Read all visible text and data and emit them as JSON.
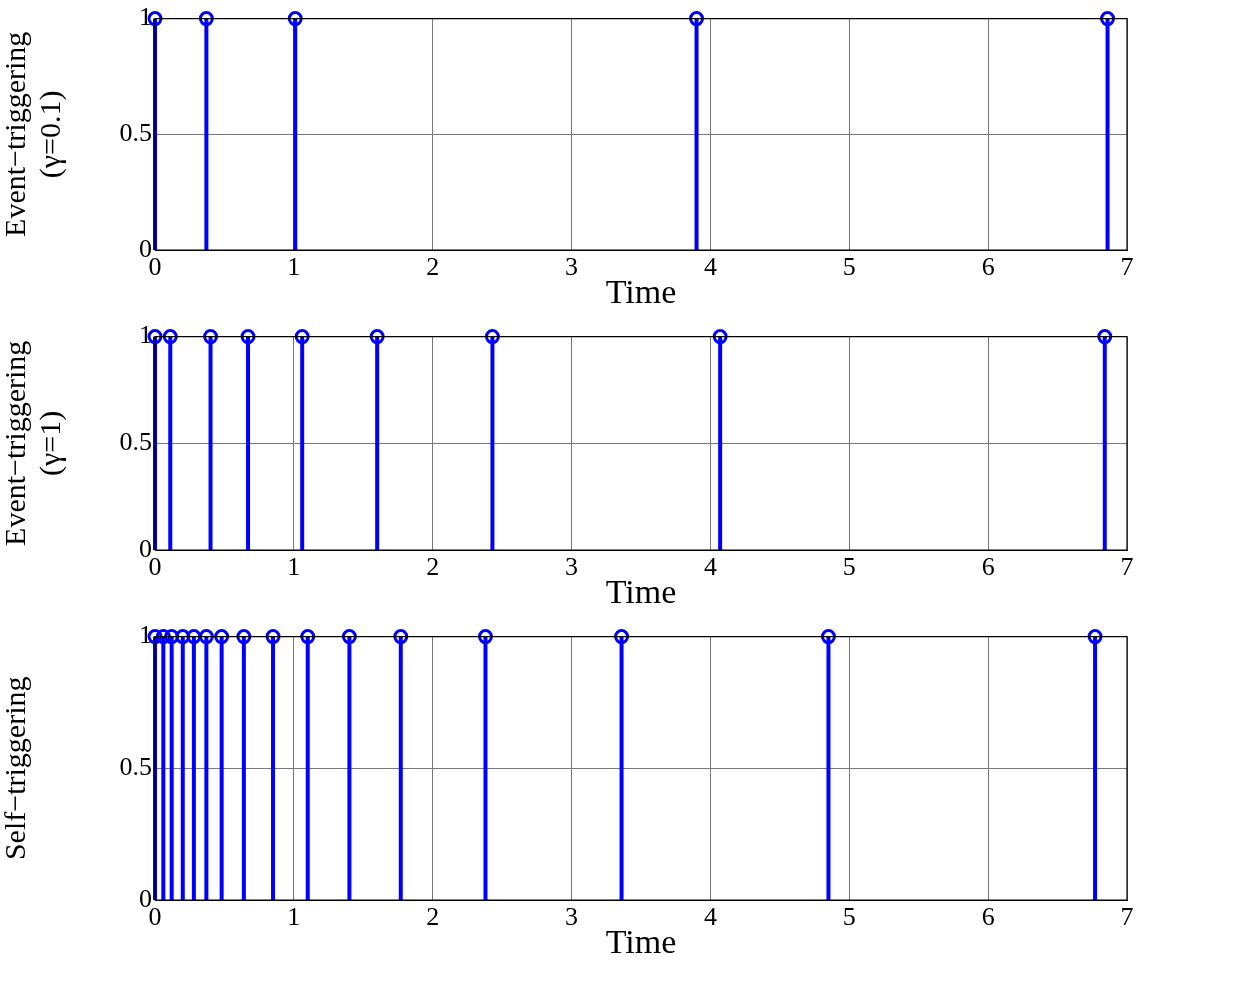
{
  "chart_data": [
    {
      "type": "lollipop",
      "xlabel": "Time",
      "ylabel": "Event−triggering\n(γ=0.1)",
      "x": [
        0,
        0.37,
        1.01,
        3.9,
        6.86
      ],
      "values": [
        1,
        1,
        1,
        1,
        1
      ],
      "color": "#0000ff",
      "marker": "circle",
      "xlim": [
        0,
        7
      ],
      "xticks": [
        0,
        1,
        2,
        3,
        4,
        5,
        6,
        7
      ],
      "ylim": [
        0,
        1
      ],
      "yticks": [
        0,
        0.5,
        1
      ],
      "grid": true
    },
    {
      "type": "lollipop",
      "xlabel": "Time",
      "ylabel": "Event−triggering\n(γ=1)",
      "x": [
        0,
        0.11,
        0.4,
        0.67,
        1.06,
        1.6,
        2.43,
        4.07,
        6.84
      ],
      "values": [
        1,
        1,
        1,
        1,
        1,
        1,
        1,
        1,
        1
      ],
      "color": "#0000ff",
      "marker": "circle",
      "xlim": [
        0,
        7
      ],
      "xticks": [
        0,
        1,
        2,
        3,
        4,
        5,
        6,
        7
      ],
      "ylim": [
        0,
        1
      ],
      "yticks": [
        0,
        0.5,
        1
      ],
      "grid": true
    },
    {
      "type": "lollipop",
      "xlabel": "Time",
      "ylabel": "Self−triggering",
      "x": [
        0,
        0.06,
        0.12,
        0.2,
        0.28,
        0.37,
        0.48,
        0.64,
        0.85,
        1.1,
        1.4,
        1.77,
        2.38,
        3.36,
        4.85,
        6.77
      ],
      "values": [
        1,
        1,
        1,
        1,
        1,
        1,
        1,
        1,
        1,
        1,
        1,
        1,
        1,
        1,
        1,
        1
      ],
      "color": "#0000ff",
      "marker": "circle",
      "xlim": [
        0,
        7
      ],
      "xticks": [
        0,
        1,
        2,
        3,
        4,
        5,
        6,
        7
      ],
      "ylim": [
        0,
        1
      ],
      "yticks": [
        0,
        0.5,
        1
      ],
      "grid": true
    }
  ]
}
